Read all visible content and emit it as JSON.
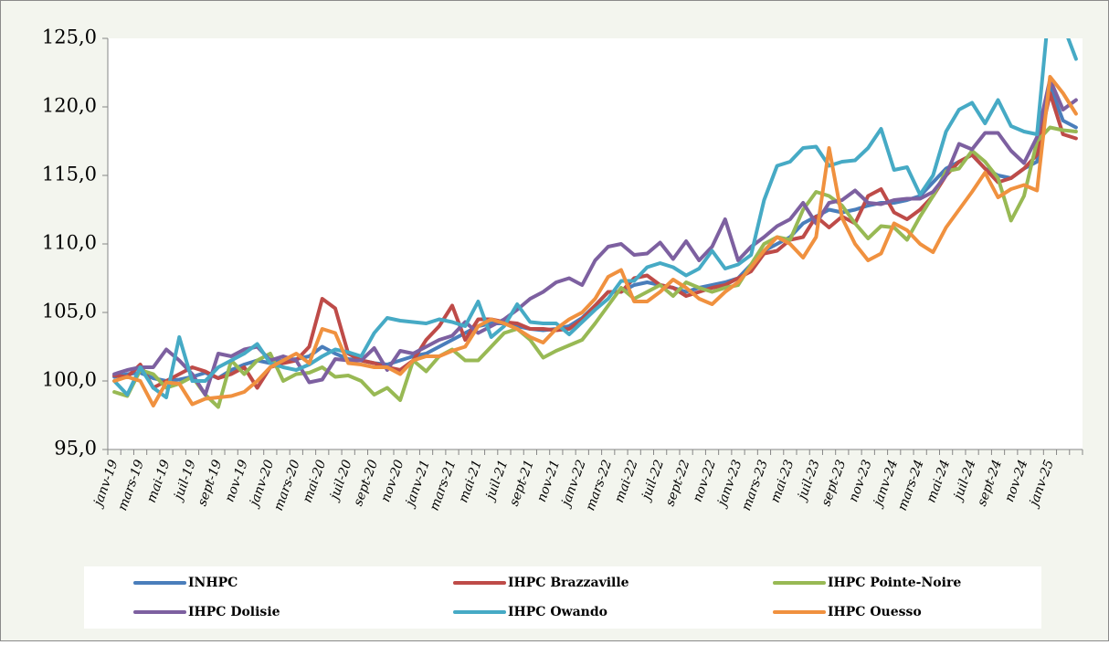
{
  "chart_data": {
    "type": "line",
    "categories": [
      "janv-19",
      null,
      "mars-19",
      null,
      "mai-19",
      null,
      "juil-19",
      null,
      "sept-19",
      null,
      "nov-19",
      null,
      "janv-20",
      null,
      "mars-20",
      null,
      "mai-20",
      null,
      "juil-20",
      null,
      "sept-20",
      null,
      "nov-20",
      null,
      "janv-21",
      null,
      "mars-21",
      null,
      "mai-21",
      null,
      "juil-21",
      null,
      "sept-21",
      null,
      "nov-21",
      null,
      "janv-22",
      null,
      "mars-22",
      null,
      "mai-22",
      null,
      "juil-22",
      null,
      "sept-22",
      null,
      "nov-22",
      null,
      "janv-23",
      null,
      "mars-23",
      null,
      "mai-23",
      null,
      "juil-23",
      null,
      "sept-23",
      null,
      "nov-23",
      null,
      "janv-24",
      null,
      "mars-24",
      null,
      "mai-24",
      null,
      "juil-24",
      null,
      "sept-24",
      null,
      "nov-24",
      null,
      "janv-25",
      null,
      null
    ],
    "series": [
      {
        "name": "INHPC",
        "color": "#4a7ebb",
        "values": [
          100.3,
          100.5,
          100.6,
          100.2,
          100.0,
          100.1,
          100.3,
          100.6,
          100.2,
          100.8,
          101.2,
          101.5,
          101.3,
          101.5,
          101.6,
          101.8,
          102.5,
          102.0,
          101.6,
          101.5,
          101.3,
          101.2,
          101.5,
          101.8,
          102.0,
          102.5,
          103.0,
          103.5,
          104.0,
          104.2,
          104.2,
          104.0,
          103.8,
          103.7,
          103.8,
          104.0,
          104.6,
          105.5,
          106.5,
          106.5,
          107.0,
          107.2,
          107.0,
          106.8,
          106.5,
          106.8,
          107.0,
          107.2,
          107.5,
          108.5,
          109.5,
          110.0,
          110.5,
          111.5,
          112.0,
          112.5,
          112.3,
          112.5,
          112.8,
          113.0,
          113.0,
          113.2,
          113.5,
          114.5,
          115.5,
          116.0,
          116.5,
          115.5,
          115.0,
          114.8,
          115.5,
          116.0,
          121.5,
          119.0,
          118.5
        ]
      },
      {
        "name": "IHPC Brazzaville",
        "color": "#be4b48",
        "values": [
          100.4,
          100.3,
          101.2,
          99.5,
          100.0,
          100.5,
          101.0,
          100.7,
          100.2,
          100.5,
          101.0,
          99.5,
          101.0,
          101.3,
          101.5,
          102.5,
          106.0,
          105.3,
          102.0,
          101.5,
          101.3,
          101.0,
          100.8,
          101.5,
          103.0,
          104.0,
          105.5,
          103.0,
          104.5,
          104.5,
          104.3,
          104.2,
          103.8,
          103.8,
          103.7,
          103.8,
          104.5,
          105.5,
          106.5,
          106.5,
          107.5,
          107.7,
          107.0,
          106.8,
          106.2,
          106.5,
          106.8,
          107.0,
          107.5,
          108.0,
          109.3,
          109.5,
          110.3,
          110.5,
          112.0,
          111.2,
          112.0,
          111.5,
          113.5,
          114.0,
          112.3,
          111.8,
          112.5,
          113.5,
          115.0,
          116.0,
          116.5,
          115.5,
          114.5,
          114.8,
          115.5,
          116.5,
          121.0,
          118.0,
          117.7
        ]
      },
      {
        "name": "IHPC Pointe-Noire",
        "color": "#98b954",
        "values": [
          99.2,
          98.9,
          100.8,
          100.5,
          99.5,
          99.8,
          100.3,
          99.0,
          98.1,
          101.5,
          100.5,
          101.5,
          102.0,
          100.0,
          100.5,
          100.6,
          101.0,
          100.3,
          100.4,
          100.0,
          99.0,
          99.5,
          98.6,
          101.5,
          100.7,
          101.8,
          102.3,
          101.5,
          101.5,
          102.5,
          103.5,
          103.8,
          103.0,
          101.7,
          102.2,
          102.6,
          103.0,
          104.2,
          105.5,
          106.8,
          106.0,
          106.5,
          107.0,
          106.2,
          107.2,
          106.8,
          106.5,
          106.8,
          107.0,
          108.5,
          110.0,
          110.5,
          110.3,
          112.5,
          113.8,
          113.5,
          112.8,
          111.5,
          110.4,
          111.3,
          111.2,
          110.3,
          112.0,
          113.5,
          115.3,
          115.5,
          116.8,
          116.0,
          114.8,
          111.7,
          113.5,
          117.5,
          118.5,
          118.3,
          118.2
        ]
      },
      {
        "name": "IHPC Dolisie",
        "color": "#7d60a0",
        "values": [
          100.5,
          100.8,
          101.0,
          101.0,
          102.3,
          101.5,
          100.5,
          99.0,
          102.0,
          101.8,
          102.3,
          102.5,
          101.5,
          101.8,
          101.5,
          99.9,
          100.1,
          101.6,
          101.5,
          101.5,
          102.4,
          100.8,
          102.2,
          102.0,
          102.5,
          103.0,
          103.3,
          104.3,
          103.5,
          104.0,
          104.5,
          105.2,
          106.0,
          106.5,
          107.2,
          107.5,
          107.0,
          108.8,
          109.8,
          110.0,
          109.2,
          109.3,
          110.1,
          108.9,
          110.2,
          108.8,
          109.8,
          111.8,
          108.8,
          109.8,
          110.5,
          111.3,
          111.8,
          113.0,
          111.5,
          113.0,
          113.2,
          113.9,
          113.0,
          112.9,
          113.2,
          113.3,
          113.3,
          113.8,
          115.0,
          117.3,
          116.9,
          118.1,
          118.1,
          116.8,
          115.9,
          117.8,
          122.0,
          119.8,
          120.5
        ]
      },
      {
        "name": "IHPC Owando",
        "color": "#46aac5",
        "values": [
          100.0,
          99.0,
          101.0,
          99.5,
          98.8,
          103.2,
          100.0,
          100.0,
          101.0,
          101.5,
          102.0,
          102.7,
          101.3,
          101.0,
          100.8,
          101.2,
          101.8,
          102.3,
          102.1,
          101.8,
          103.5,
          104.6,
          104.4,
          104.3,
          104.2,
          104.5,
          104.3,
          104.0,
          105.8,
          103.2,
          104.0,
          105.6,
          104.3,
          104.2,
          104.2,
          103.4,
          104.3,
          105.2,
          106.0,
          107.3,
          107.3,
          108.3,
          108.6,
          108.3,
          107.7,
          108.2,
          109.5,
          108.2,
          108.5,
          109.2,
          113.2,
          115.7,
          116.0,
          117.0,
          117.1,
          115.7,
          116.0,
          116.1,
          117.0,
          118.4,
          115.4,
          115.6,
          113.6,
          115.0,
          118.2,
          119.8,
          120.3,
          118.8,
          120.5,
          118.6,
          118.2,
          118.0,
          128.0,
          126.0,
          123.5
        ]
      },
      {
        "name": "IHPC Ouesso",
        "color": "#f0913f",
        "values": [
          100.0,
          100.3,
          100.0,
          98.2,
          99.9,
          99.8,
          98.3,
          98.7,
          98.8,
          98.9,
          99.2,
          100.0,
          101.0,
          101.5,
          102.0,
          101.3,
          103.8,
          103.5,
          101.3,
          101.2,
          101.0,
          101.0,
          100.5,
          101.5,
          101.8,
          101.8,
          102.2,
          102.5,
          104.0,
          104.5,
          104.2,
          103.8,
          103.2,
          102.8,
          103.8,
          104.5,
          105.0,
          106.0,
          107.6,
          108.1,
          105.8,
          105.8,
          106.5,
          107.4,
          106.8,
          106.0,
          105.6,
          106.5,
          107.2,
          108.3,
          109.5,
          110.5,
          110.0,
          109.0,
          110.5,
          117.0,
          111.9,
          110.0,
          108.8,
          109.3,
          111.5,
          111.0,
          110.0,
          109.4,
          111.2,
          112.5,
          113.8,
          115.2,
          113.4,
          114.0,
          114.3,
          113.9,
          122.2,
          121.0,
          119.5
        ]
      }
    ],
    "ylim": [
      95,
      125
    ],
    "yticks": [
      {
        "value": 95,
        "label": "95,0"
      },
      {
        "value": 100,
        "label": "100,0"
      },
      {
        "value": 105,
        "label": "105,0"
      },
      {
        "value": 110,
        "label": "110,0"
      },
      {
        "value": 115,
        "label": "115,0"
      },
      {
        "value": 120,
        "label": "120,0"
      },
      {
        "value": 125,
        "label": "125,0"
      }
    ],
    "grid": false,
    "legend": "bottom"
  }
}
